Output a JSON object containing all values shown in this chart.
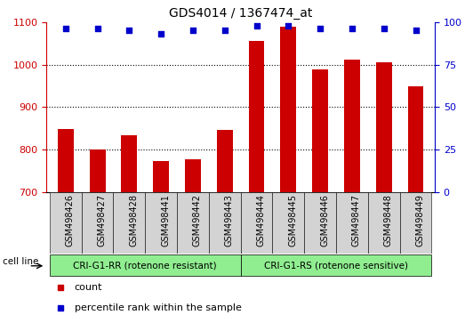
{
  "title": "GDS4014 / 1367474_at",
  "categories": [
    "GSM498426",
    "GSM498427",
    "GSM498428",
    "GSM498441",
    "GSM498442",
    "GSM498443",
    "GSM498444",
    "GSM498445",
    "GSM498446",
    "GSM498447",
    "GSM498448",
    "GSM498449"
  ],
  "bar_values": [
    848,
    800,
    833,
    773,
    778,
    847,
    1055,
    1090,
    988,
    1012,
    1005,
    948
  ],
  "percentile_values": [
    96,
    96,
    95,
    93,
    95,
    95,
    98,
    98,
    96,
    96,
    96,
    95
  ],
  "bar_color": "#cc0000",
  "dot_color": "#0000cc",
  "ylim_left": [
    700,
    1100
  ],
  "ylim_right": [
    0,
    100
  ],
  "yticks_left": [
    700,
    800,
    900,
    1000,
    1100
  ],
  "yticks_right": [
    0,
    25,
    50,
    75,
    100
  ],
  "group1_label": "CRI-G1-RR (rotenone resistant)",
  "group2_label": "CRI-G1-RS (rotenone sensitive)",
  "group1_count": 6,
  "group2_count": 6,
  "cell_line_label": "cell line",
  "legend_count_label": "count",
  "legend_percentile_label": "percentile rank within the sample",
  "group_bg_color": "#90ee90",
  "xticklabel_bg_color": "#d3d3d3",
  "background_color": "#ffffff",
  "title_fontsize": 10,
  "tick_fontsize": 8,
  "bar_width": 0.5,
  "grid_yticks": [
    800,
    900,
    1000
  ]
}
